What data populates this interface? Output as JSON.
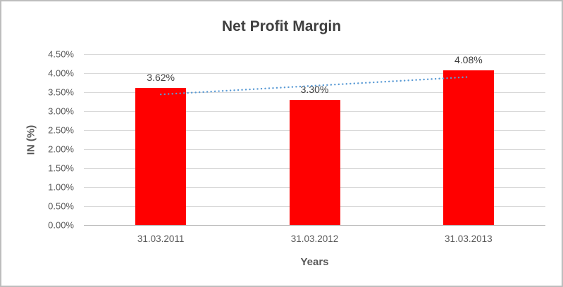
{
  "chart_data": {
    "type": "bar",
    "title": "Net Profit Margin",
    "xlabel": "Years",
    "ylabel": "IN (%)",
    "categories": [
      "31.03.2011",
      "31.03.2012",
      "31.03.2013"
    ],
    "values": [
      3.62,
      3.3,
      4.08
    ],
    "data_labels": [
      "3.62%",
      "3.30%",
      "4.08%"
    ],
    "ylim": [
      0,
      4.5
    ],
    "ytick_step": 0.5,
    "ytick_labels": [
      "0.00%",
      "0.50%",
      "1.00%",
      "1.50%",
      "2.00%",
      "2.50%",
      "3.00%",
      "3.50%",
      "4.00%",
      "4.50%"
    ],
    "grid": true,
    "legend": "none",
    "bar_color": "#ff0000",
    "title_color": "#404040",
    "axis_text_color": "#595959",
    "gridline_color": "#d9d9d9",
    "trendline": {
      "type": "linear",
      "style": "dotted",
      "color": "#5b9bd5",
      "start_value": 3.44,
      "end_value": 3.9
    }
  }
}
